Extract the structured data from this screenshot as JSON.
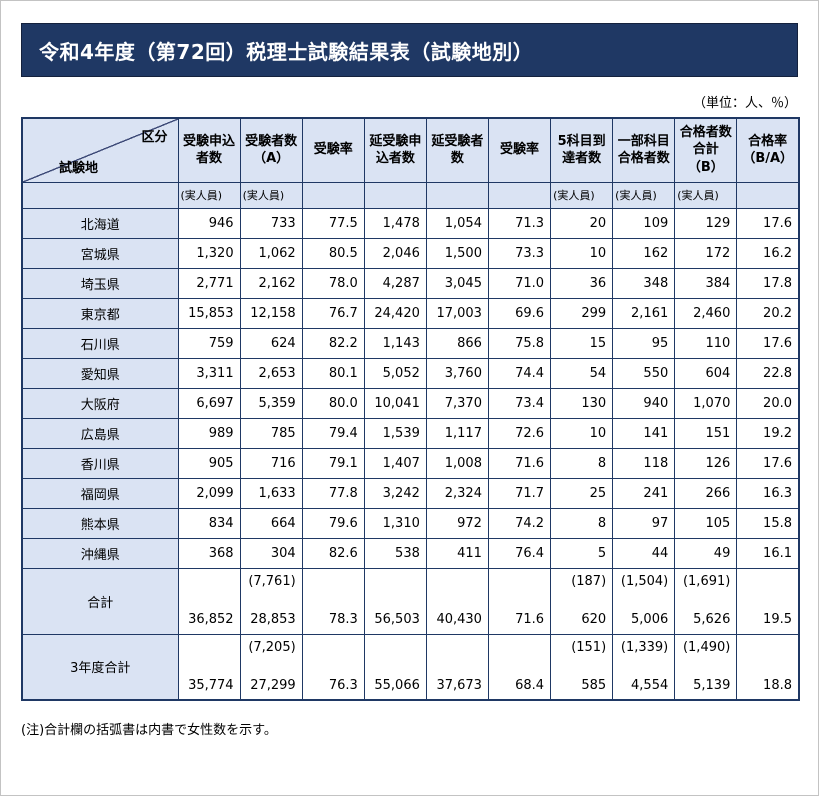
{
  "page": {
    "title": "令和4年度（第72回）税理士試験結果表（試験地別）",
    "unit_note": "（単位：人、％）",
    "footnote": "(注)合計欄の括弧書は内書で女性数を示す。"
  },
  "colors": {
    "accent": "#1f3864",
    "border": "#1f3864",
    "header_bg": "#dae3f3"
  },
  "table": {
    "corner": {
      "top_right": "区分",
      "bottom_left": "試験地"
    },
    "columns": [
      {
        "label": "受験申込\n者数",
        "sub": "(実人員)"
      },
      {
        "label": "受験者数\n（A）",
        "sub": "(実人員)"
      },
      {
        "label": "受験率",
        "sub": ""
      },
      {
        "label": "延受験申\n込者数",
        "sub": ""
      },
      {
        "label": "延受験者\n数",
        "sub": ""
      },
      {
        "label": "受験率",
        "sub": ""
      },
      {
        "label": "5科目到\n達者数",
        "sub": "(実人員)"
      },
      {
        "label": "一部科目\n合格者数",
        "sub": "(実人員)"
      },
      {
        "label": "合格者数\n合計\n（B）",
        "sub": "(実人員)"
      },
      {
        "label": "合格率\n（B/A）",
        "sub": ""
      }
    ],
    "rows": [
      {
        "name": "北海道",
        "values": [
          "946",
          "733",
          "77.5",
          "1,478",
          "1,054",
          "71.3",
          "20",
          "109",
          "129",
          "17.6"
        ]
      },
      {
        "name": "宮城県",
        "values": [
          "1,320",
          "1,062",
          "80.5",
          "2,046",
          "1,500",
          "73.3",
          "10",
          "162",
          "172",
          "16.2"
        ]
      },
      {
        "name": "埼玉県",
        "values": [
          "2,771",
          "2,162",
          "78.0",
          "4,287",
          "3,045",
          "71.0",
          "36",
          "348",
          "384",
          "17.8"
        ]
      },
      {
        "name": "東京都",
        "values": [
          "15,853",
          "12,158",
          "76.7",
          "24,420",
          "17,003",
          "69.6",
          "299",
          "2,161",
          "2,460",
          "20.2"
        ]
      },
      {
        "name": "石川県",
        "values": [
          "759",
          "624",
          "82.2",
          "1,143",
          "866",
          "75.8",
          "15",
          "95",
          "110",
          "17.6"
        ]
      },
      {
        "name": "愛知県",
        "values": [
          "3,311",
          "2,653",
          "80.1",
          "5,052",
          "3,760",
          "74.4",
          "54",
          "550",
          "604",
          "22.8"
        ]
      },
      {
        "name": "大阪府",
        "values": [
          "6,697",
          "5,359",
          "80.0",
          "10,041",
          "7,370",
          "73.4",
          "130",
          "940",
          "1,070",
          "20.0"
        ]
      },
      {
        "name": "広島県",
        "values": [
          "989",
          "785",
          "79.4",
          "1,539",
          "1,117",
          "72.6",
          "10",
          "141",
          "151",
          "19.2"
        ]
      },
      {
        "name": "香川県",
        "values": [
          "905",
          "716",
          "79.1",
          "1,407",
          "1,008",
          "71.6",
          "8",
          "118",
          "126",
          "17.6"
        ]
      },
      {
        "name": "福岡県",
        "values": [
          "2,099",
          "1,633",
          "77.8",
          "3,242",
          "2,324",
          "71.7",
          "25",
          "241",
          "266",
          "16.3"
        ]
      },
      {
        "name": "熊本県",
        "values": [
          "834",
          "664",
          "79.6",
          "1,310",
          "972",
          "74.2",
          "8",
          "97",
          "105",
          "15.8"
        ]
      },
      {
        "name": "沖縄県",
        "values": [
          "368",
          "304",
          "82.6",
          "538",
          "411",
          "76.4",
          "5",
          "44",
          "49",
          "16.1"
        ]
      }
    ],
    "total_rows": [
      {
        "name": "合計",
        "paren": [
          "",
          "(7,761)",
          "",
          "",
          "",
          "",
          "(187)",
          "(1,504)",
          "(1,691)",
          ""
        ],
        "values": [
          "36,852",
          "28,853",
          "78.3",
          "56,503",
          "40,430",
          "71.6",
          "620",
          "5,006",
          "5,626",
          "19.5"
        ]
      },
      {
        "name": "3年度合計",
        "paren": [
          "",
          "(7,205)",
          "",
          "",
          "",
          "",
          "(151)",
          "(1,339)",
          "(1,490)",
          ""
        ],
        "values": [
          "35,774",
          "27,299",
          "76.3",
          "55,066",
          "37,673",
          "68.4",
          "585",
          "4,554",
          "5,139",
          "18.8"
        ]
      }
    ]
  }
}
